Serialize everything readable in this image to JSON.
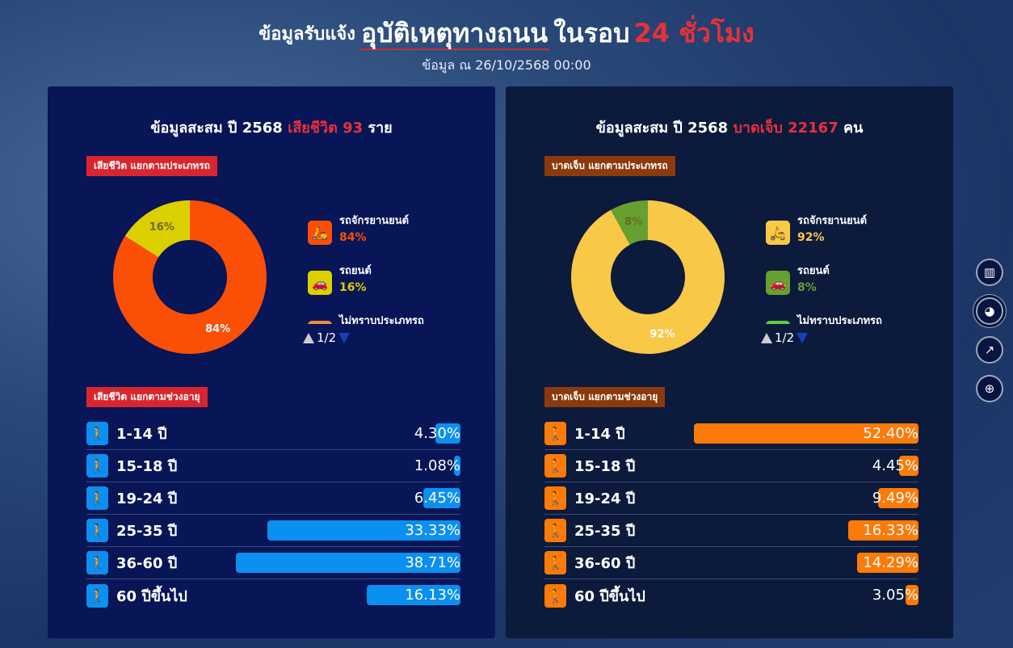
{
  "header": {
    "prefix": "ข้อมูลรับแจ้ง",
    "title": "อุบัติเหตุทางถนน",
    "middle": "ในรอบ",
    "highlight": "24 ชั่วโมง",
    "subtitle": "ข้อมูล ณ 26/10/2568 00:00"
  },
  "panels": [
    {
      "title_prefix": "ข้อมูลสะสม ปี 2568",
      "title_highlight": "เสียชีวิต 93",
      "title_suffix": "ราย",
      "type_tag": "เสียชีวิต แยกตามประเภทรถ",
      "type_tag_color": "#d9262e",
      "age_tag": "เสียชีวิต แยกตามช่วงอายุ",
      "age_tag_color": "#d9262e",
      "chart_data": {
        "type": "pie",
        "categories": [
          "รถจักรยานยนต์",
          "รถยนต์"
        ],
        "values": [
          84,
          16
        ],
        "colors": [
          "#fb4f06",
          "#dccf00"
        ]
      },
      "legend": [
        {
          "label": "รถจักรยานยนต์",
          "value": "84%",
          "color": "#fb4f06",
          "icon": "motorcycle-icon"
        },
        {
          "label": "รถยนต์",
          "value": "16%",
          "color": "#dccf00",
          "icon": "car-icon"
        },
        {
          "label": "ไม่ทราบประเภทรถ",
          "value": "",
          "color": "#f08a3a",
          "icon": "unknown-vehicle-icon"
        }
      ],
      "pager": "1/2",
      "age_color": "#0b8ff0",
      "ages": [
        {
          "label": "1-14 ปี",
          "value": 4.3,
          "text": "4.30%"
        },
        {
          "label": "15-18 ปี",
          "value": 1.08,
          "text": "1.08%"
        },
        {
          "label": "19-24 ปี",
          "value": 6.45,
          "text": "6.45%"
        },
        {
          "label": "25-35 ปี",
          "value": 33.33,
          "text": "33.33%"
        },
        {
          "label": "36-60 ปี",
          "value": 38.71,
          "text": "38.71%"
        },
        {
          "label": "60 ปีขึ้นไป",
          "value": 16.13,
          "text": "16.13%"
        }
      ]
    },
    {
      "title_prefix": "ข้อมูลสะสม ปี 2568",
      "title_highlight": "บาดเจ็บ 22167",
      "title_suffix": "คน",
      "type_tag": "บาดเจ็บ แยกตามประเภทรถ",
      "type_tag_color": "#8a3a0c",
      "age_tag": "บาดเจ็บ แยกตามช่วงอายุ",
      "age_tag_color": "#8a3a0c",
      "chart_data": {
        "type": "pie",
        "categories": [
          "รถจักรยานยนต์",
          "รถยนต์"
        ],
        "values": [
          92,
          8
        ],
        "colors": [
          "#f9c846",
          "#66a030"
        ]
      },
      "legend": [
        {
          "label": "รถจักรยานยนต์",
          "value": "92%",
          "color": "#f9c846",
          "icon": "motorcycle-icon"
        },
        {
          "label": "รถยนต์",
          "value": "8%",
          "color": "#66a030",
          "icon": "car-icon"
        },
        {
          "label": "ไม่ทราบประเภทรถ",
          "value": "",
          "color": "#5cd040",
          "icon": "unknown-vehicle-icon"
        }
      ],
      "pager": "1/2",
      "age_color": "#fb7a08",
      "ages": [
        {
          "label": "1-14 ปี",
          "value": 52.4,
          "text": "52.40%"
        },
        {
          "label": "15-18 ปี",
          "value": 4.45,
          "text": "4.45%"
        },
        {
          "label": "19-24 ปี",
          "value": 9.49,
          "text": "9.49%"
        },
        {
          "label": "25-35 ปี",
          "value": 16.33,
          "text": "16.33%"
        },
        {
          "label": "36-60 ปี",
          "value": 14.29,
          "text": "14.29%"
        },
        {
          "label": "60 ปีขึ้นไป",
          "value": 3.05,
          "text": "3.05%"
        }
      ]
    }
  ],
  "side_nav": [
    {
      "icon": "bar-chart-icon",
      "glyph": "▥"
    },
    {
      "icon": "pie-chart-icon",
      "glyph": "◕"
    },
    {
      "icon": "growth-chart-icon",
      "glyph": "↗"
    },
    {
      "icon": "globe-icon",
      "glyph": "⊕"
    }
  ]
}
